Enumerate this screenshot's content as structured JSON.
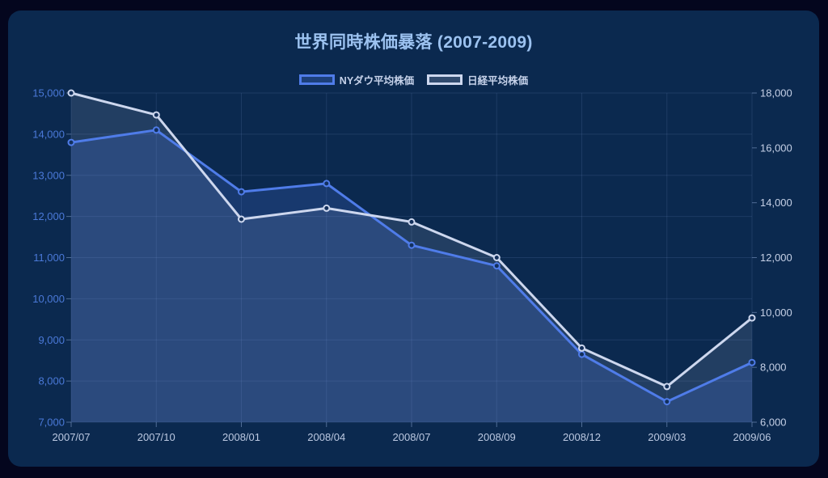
{
  "theme": {
    "page_bg": "#04061e",
    "card_bg": "#0b294f",
    "title_color": "#9cc2f0",
    "legend_text_color": "#c6d2ea"
  },
  "chart_data": {
    "type": "line",
    "title": "世界同時株価暴落 (2007-2009)",
    "categories": [
      "2007/07",
      "2007/10",
      "2008/01",
      "2008/04",
      "2008/07",
      "2008/09",
      "2008/12",
      "2009/03",
      "2009/06"
    ],
    "series": [
      {
        "name": "NYダウ平均株価",
        "axis": "left",
        "color": "#4f7ce9",
        "fill_alpha": 0.2,
        "values": [
          13800,
          14100,
          12600,
          12800,
          11300,
          10800,
          8650,
          7500,
          8450
        ]
      },
      {
        "name": "日経平均株価",
        "axis": "right",
        "color": "#cdd7ee",
        "fill_alpha": 0.12,
        "values": [
          18000,
          17200,
          13400,
          13800,
          13300,
          12000,
          8700,
          7300,
          9800
        ]
      }
    ],
    "left_axis": {
      "min": 7000,
      "max": 15000,
      "step": 1000,
      "label_color": "#4a79d8"
    },
    "right_axis": {
      "min": 6000,
      "max": 18000,
      "step": 2000,
      "label_color": "#c5d0e6"
    },
    "x_axis": {
      "label_color": "#bcc9e2"
    },
    "grid": true,
    "grid_color": "rgba(122,158,212,0.16)",
    "tick_mark_color": "rgba(148,176,220,0.5)",
    "marker_fill": "#13305c",
    "legend_position": "top",
    "area_fill_to_bottom": true
  }
}
